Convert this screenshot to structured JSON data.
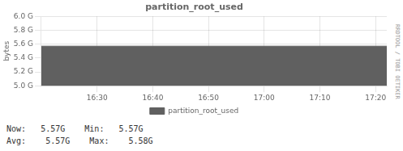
{
  "chart_data": {
    "type": "area",
    "title": "partition_root_used",
    "ylabel": "bytes",
    "x": [
      0,
      3720
    ],
    "series": [
      {
        "name": "partition_root_used",
        "color": "#606060",
        "values": [
          5570000000.0,
          5570000000.0
        ]
      }
    ],
    "xlim": [
      0,
      3720
    ],
    "xticks": [
      {
        "value": 600,
        "label": "16:30"
      },
      {
        "value": 1200,
        "label": "16:40"
      },
      {
        "value": 1800,
        "label": "16:50"
      },
      {
        "value": 2400,
        "label": "17:00"
      },
      {
        "value": 3000,
        "label": "17:10"
      },
      {
        "value": 3600,
        "label": "17:20"
      }
    ],
    "ylim": [
      5000000000.0,
      6000000000.0
    ],
    "yticks": [
      {
        "value": 5000000000.0,
        "label": "5.0 G"
      },
      {
        "value": 5200000000.0,
        "label": "5.2 G"
      },
      {
        "value": 5400000000.0,
        "label": "5.4 G"
      },
      {
        "value": 5600000000.0,
        "label": "5.6 G"
      },
      {
        "value": 5800000000.0,
        "label": "5.8 G"
      },
      {
        "value": 6000000000.0,
        "label": "6.0 G"
      }
    ],
    "grid": true,
    "annotations": [
      "Now:   5.57G",
      "Min:   5.57G",
      "Avg:    5.57G    Max:    5.58G",
      "RRDTOOL / TOBI OETIKER"
    ]
  }
}
